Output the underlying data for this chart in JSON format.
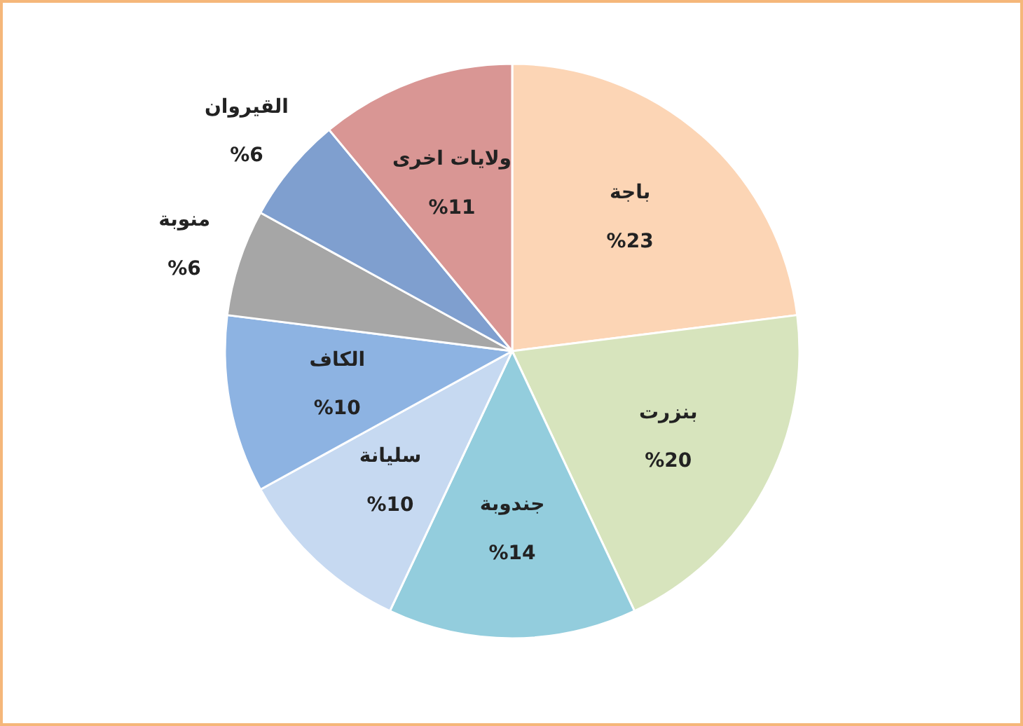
{
  "chart_data": {
    "type": "pie",
    "categories": [
      "باجة",
      "بنزرت",
      "جندوبة",
      "سليانة",
      "الكاف",
      "منوبة",
      "القيروان",
      "ولايات اخرى"
    ],
    "values": [
      23,
      20,
      14,
      10,
      10,
      6,
      6,
      11
    ],
    "colors": [
      "#fcd5b5",
      "#d7e4bd",
      "#93cddd",
      "#c6d9f1",
      "#8db3e2",
      "#a6a6a6",
      "#7f9fcf",
      "#d99694"
    ],
    "value_labels": [
      "%23",
      "%20",
      "%14",
      "%10",
      "%10",
      "%6",
      "%6",
      "%11"
    ],
    "legend": false
  }
}
